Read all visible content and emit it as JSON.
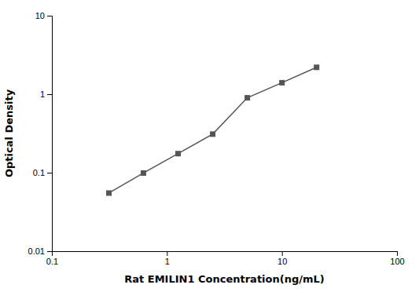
{
  "chart_data": {
    "type": "line",
    "xlabel": "Rat EMILIN1 Concentration(ng/mL)",
    "ylabel": "Optical Density",
    "x": [
      0.313,
      0.625,
      1.25,
      2.5,
      5.0,
      10.0,
      20.0
    ],
    "values": [
      0.055,
      0.099,
      0.175,
      0.31,
      0.9,
      1.4,
      2.2
    ],
    "xlim": [
      0.1,
      100
    ],
    "ylim": [
      0.01,
      10
    ],
    "xticks": [
      0.1,
      1,
      10,
      100
    ],
    "yticks": [
      0.01,
      0.1,
      1,
      10
    ],
    "log": true,
    "grid": false,
    "color": "#555555",
    "marker": "square"
  }
}
